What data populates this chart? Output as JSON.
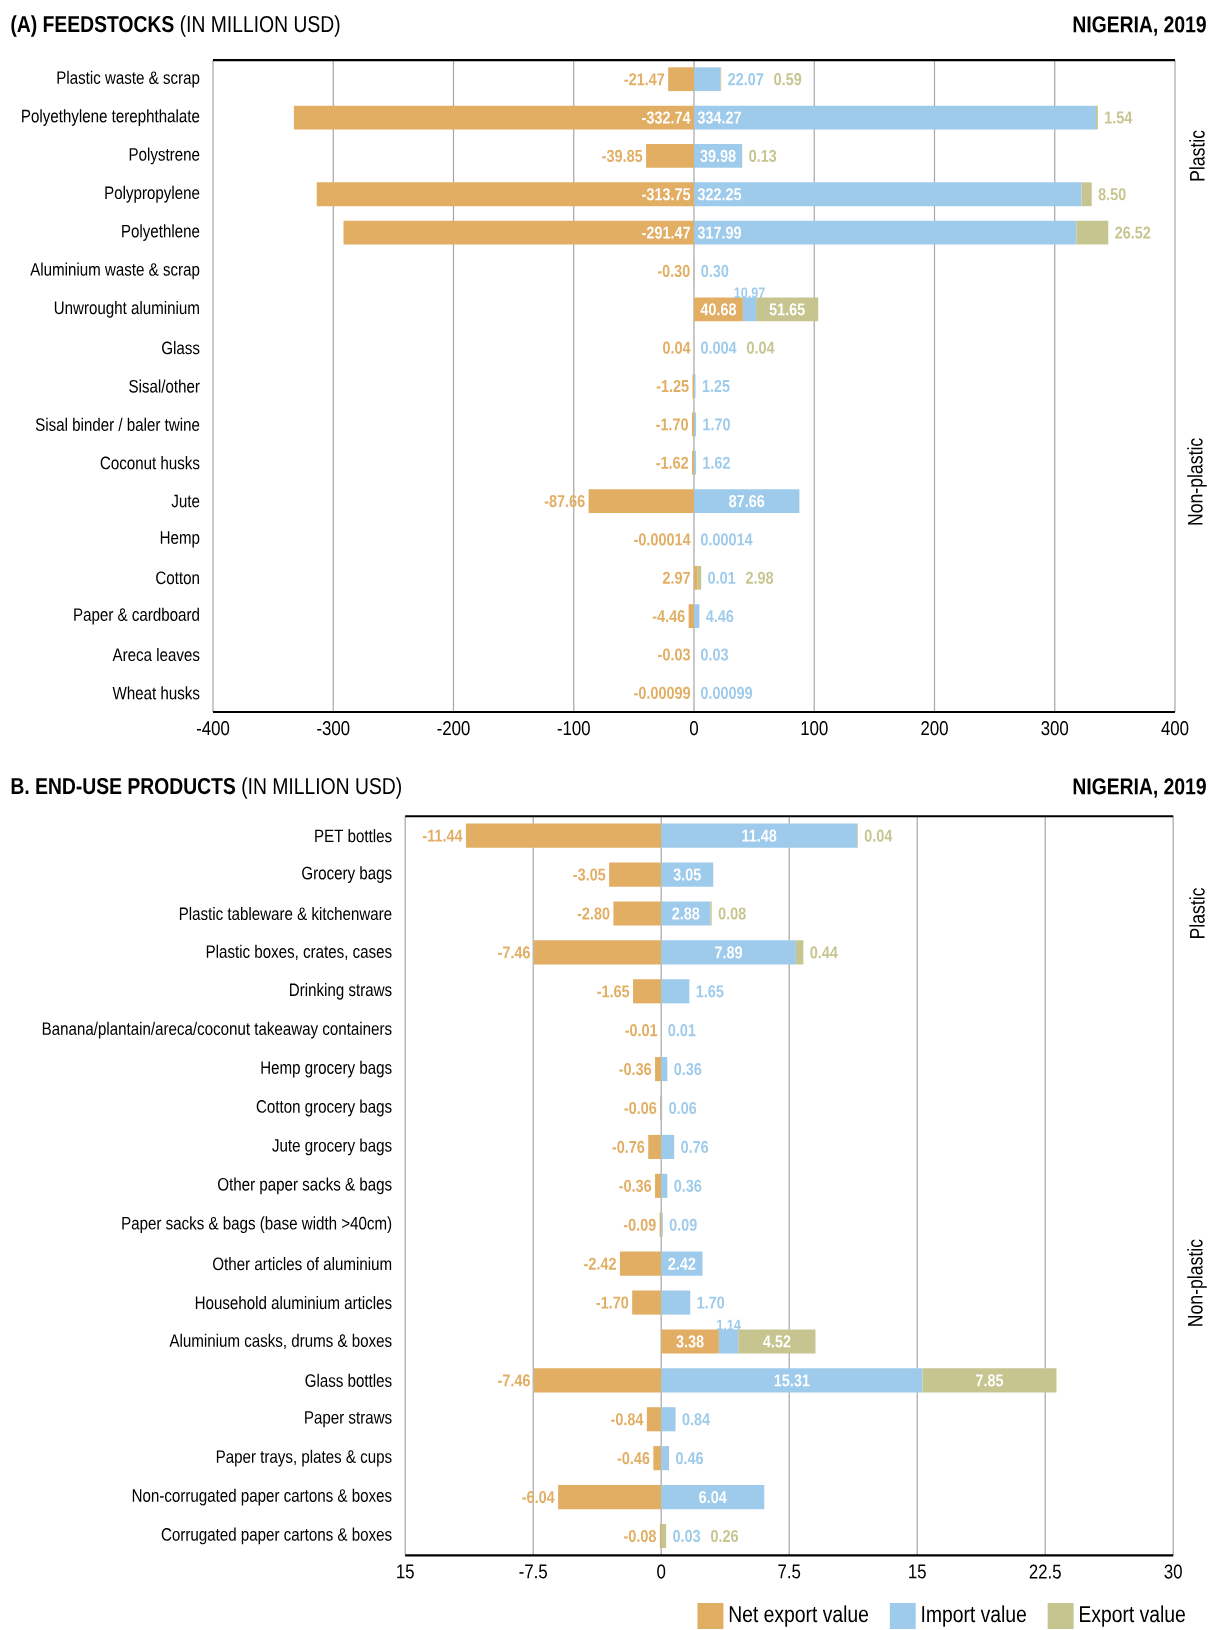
{
  "chart_data": [
    {
      "type": "bar",
      "orientation": "horizontal",
      "stacked": true,
      "title": "**(A)  FEEDSTOCKS** (IN MILLION USD)",
      "subtitle": "NIGERIA, 2019",
      "grid": "x",
      "categories": [
        "Plastic waste & scrap",
        "Polyethylene terephthalate",
        "Polystrene",
        "Polypropylene",
        "Polyethlene",
        "Aluminium waste & scrap",
        "Unwrought aluminium",
        "Glass",
        "Sisal/other",
        "Sisal binder / baler twine",
        "Coconut husks",
        "Jute",
        "Hemp",
        "Cotton",
        "Paper & cardboard",
        "Areca leaves",
        "Wheat husks"
      ],
      "xlim": [
        -400,
        400
      ],
      "xticks": [
        -400,
        -300,
        -200,
        -100,
        0,
        100,
        200,
        300,
        400
      ],
      "series": [
        {
          "color": "#e1ae64",
          "values": [
            -21.47,
            -332.74,
            -39.85,
            -313.75,
            -291.47,
            -0.3,
            40.68,
            0.04,
            -1.25,
            -1.7,
            -1.62,
            -87.66,
            -0.00014,
            2.97,
            -4.46,
            -0.03,
            -0.00099
          ],
          "value_labels": [
            "-21.47",
            "-332.74",
            "-39.85",
            "-313.75",
            "-291.47",
            "-0.30",
            "40.68",
            "0.04",
            "-1.25",
            "-1.70",
            "-1.62",
            "-87.66",
            "-0.00014",
            "2.97",
            "-4.46",
            "-0.03",
            "-0.00099"
          ]
        },
        {
          "color": "#9ecbeb",
          "values": [
            22.07,
            334.27,
            39.98,
            322.25,
            317.99,
            0.3,
            10.97,
            0.004,
            1.25,
            1.7,
            1.62,
            87.66,
            0.00014,
            0.01,
            4.46,
            0.03,
            0.00099
          ],
          "value_labels": [
            "22.07",
            "334.27",
            "39.98",
            "322.25",
            "317.99",
            "0.30",
            "10.97",
            "0.004",
            "1.25",
            "1.70",
            "1.62",
            "87.66",
            "0.00014",
            "0.01",
            "4.46",
            "0.03",
            "0.00099"
          ]
        },
        {
          "color": "#c6c58f",
          "values": [
            0.59,
            1.54,
            0.13,
            8.5,
            26.52,
            null,
            51.65,
            0.04,
            null,
            null,
            null,
            null,
            null,
            2.98,
            null,
            null,
            null
          ],
          "value_labels": [
            "0.59",
            "1.54",
            "0.13",
            "8.50",
            "26.52",
            null,
            "51.65",
            "0.04",
            null,
            null,
            null,
            null,
            null,
            "2.98",
            null,
            null,
            null
          ]
        }
      ],
      "annotations": [
        "Plastic",
        "Non-plastic"
      ]
    },
    {
      "type": "bar",
      "orientation": "horizontal",
      "stacked": true,
      "title": "**B. END-USE PRODUCTS** (IN MILLION USD)",
      "subtitle": "NIGERIA, 2019",
      "grid": "x",
      "legend": "bottom right",
      "categories": [
        "PET bottles",
        "Grocery bags",
        "Plastic tableware & kitchenware",
        "Plastic boxes, crates, cases",
        "Drinking straws",
        "Banana/plantain/areca/coconut takeaway containers",
        "Hemp grocery bags",
        "Cotton grocery bags",
        "Jute grocery bags",
        "Other paper sacks & bags",
        "Paper sacks & bags (base width >40cm)",
        "Other articles of aluminium",
        "Household aluminium articles",
        "Aluminium casks, drums & boxes",
        "Glass bottles",
        "Paper straws",
        "Paper trays, plates & cups",
        "Non-corrugated paper cartons & boxes",
        "Corrugated paper cartons & boxes"
      ],
      "xlim": [
        -15,
        30
      ],
      "xticks": [
        {
          "value": -15,
          "label": "15"
        },
        -7.5,
        0,
        7.5,
        15,
        22.5,
        30
      ],
      "series": [
        {
          "name": "Net export value",
          "color": "#e1ae64",
          "values": [
            -11.44,
            -3.05,
            -2.8,
            -7.46,
            -1.65,
            -0.01,
            -0.36,
            -0.06,
            -0.76,
            -0.36,
            -0.09,
            -2.42,
            -1.7,
            3.38,
            -7.46,
            -0.84,
            -0.46,
            -6.04,
            -0.08
          ],
          "value_labels": [
            "-11.44",
            "-3.05",
            "-2.80",
            "-7.46",
            "-1.65",
            "-0.01",
            "-0.36",
            "-0.06",
            "-0.76",
            "-0.36",
            "-0.09",
            "-2.42",
            "-1.70",
            "3.38",
            "-7.46",
            "-0.84",
            "-0.46",
            "-6.04",
            "-0.08"
          ]
        },
        {
          "name": "Import value",
          "color": "#9ecbeb",
          "values": [
            11.48,
            3.05,
            2.88,
            7.89,
            1.65,
            0.01,
            0.36,
            0.06,
            0.76,
            0.36,
            0.09,
            2.42,
            1.7,
            1.14,
            15.31,
            0.84,
            0.46,
            6.04,
            0.03
          ],
          "value_labels": [
            "11.48",
            "3.05",
            "2.88",
            "7.89",
            "1.65",
            "0.01",
            "0.36",
            "0.06",
            "0.76",
            "0.36",
            "0.09",
            "2.42",
            "1.70",
            "1.14",
            "15.31",
            "0.84",
            "0.46",
            "6.04",
            "0.03"
          ]
        },
        {
          "name": "Export value",
          "color": "#c6c58f",
          "values": [
            0.04,
            null,
            0.08,
            0.44,
            null,
            null,
            null,
            null,
            null,
            null,
            null,
            null,
            null,
            4.52,
            7.85,
            null,
            null,
            null,
            0.26
          ],
          "value_labels": [
            "0.04",
            null,
            "0.08",
            "0.44",
            null,
            null,
            null,
            null,
            null,
            null,
            null,
            null,
            null,
            "4.52",
            "7.85",
            null,
            null,
            null,
            "0.26"
          ]
        }
      ],
      "annotations": [
        "Plastic",
        "Non-plastic"
      ]
    }
  ]
}
